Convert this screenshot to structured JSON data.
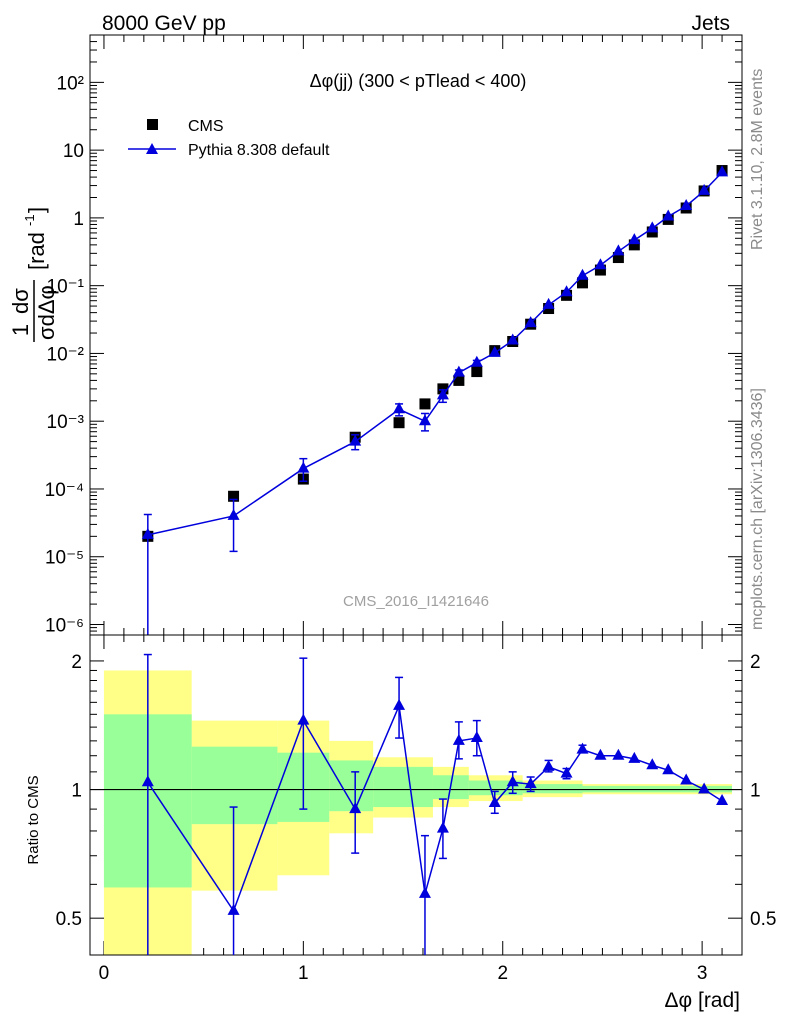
{
  "header": {
    "left": "8000 GeV pp",
    "right": "Jets",
    "plot_title": "Δφ(jj) (300 < pTlead <  400)",
    "analysis_id": "CMS_2016_I1421646",
    "side_rivet": "Rivet 3.1.10,  2.8M events",
    "side_mcplots": "mcplots.cern.ch [arXiv:1306.3436]"
  },
  "colors": {
    "cms": "#000000",
    "pythia": "#0000dd",
    "band_inner": "#99ff99",
    "band_outer": "#ffff88"
  },
  "chart_data": [
    {
      "type": "scatter",
      "name": "main",
      "ylabel": "1/σ dσ/dΔφ [rad⁻¹]",
      "yscale": "log",
      "xlim": [
        -0.07,
        3.2
      ],
      "ylim": [
        7e-07,
        500
      ],
      "y_tick_labels": [
        "10⁻⁶",
        "10⁻⁵",
        "10⁻⁴",
        "10⁻³",
        "10⁻²",
        "10⁻¹",
        "1",
        "10",
        "10²"
      ],
      "legend": {
        "position": "top-left",
        "entries": [
          "CMS",
          "Pythia 8.308 default"
        ]
      },
      "series": [
        {
          "name": "CMS",
          "marker": "square",
          "points": [
            {
              "x": 0.22,
              "y": 2e-05
            },
            {
              "x": 0.65,
              "y": 7.8e-05
            },
            {
              "x": 1.0,
              "y": 0.00014
            },
            {
              "x": 1.26,
              "y": 0.00058
            },
            {
              "x": 1.48,
              "y": 0.00095
            },
            {
              "x": 1.61,
              "y": 0.0018
            },
            {
              "x": 1.7,
              "y": 0.003
            },
            {
              "x": 1.78,
              "y": 0.004
            },
            {
              "x": 1.87,
              "y": 0.0054
            },
            {
              "x": 1.96,
              "y": 0.011
            },
            {
              "x": 2.05,
              "y": 0.015
            },
            {
              "x": 2.14,
              "y": 0.027
            },
            {
              "x": 2.23,
              "y": 0.046
            },
            {
              "x": 2.32,
              "y": 0.072
            },
            {
              "x": 2.4,
              "y": 0.11
            },
            {
              "x": 2.49,
              "y": 0.17
            },
            {
              "x": 2.58,
              "y": 0.26
            },
            {
              "x": 2.66,
              "y": 0.4
            },
            {
              "x": 2.75,
              "y": 0.62
            },
            {
              "x": 2.83,
              "y": 0.95
            },
            {
              "x": 2.92,
              "y": 1.4
            },
            {
              "x": 3.01,
              "y": 2.5
            },
            {
              "x": 3.1,
              "y": 5.0
            }
          ]
        },
        {
          "name": "Pythia 8.308 default",
          "marker": "triangle",
          "points": [
            {
              "x": 0.22,
              "y": 2.1e-05,
              "lo": 1e-07,
              "hi": 4.2e-05
            },
            {
              "x": 0.65,
              "y": 4e-05,
              "lo": 1.2e-05,
              "hi": 7e-05
            },
            {
              "x": 1.0,
              "y": 0.0002,
              "lo": 0.00013,
              "hi": 0.00028
            },
            {
              "x": 1.26,
              "y": 0.0005,
              "lo": 0.00038,
              "hi": 0.00063
            },
            {
              "x": 1.48,
              "y": 0.0015,
              "lo": 0.0012,
              "hi": 0.0018
            },
            {
              "x": 1.61,
              "y": 0.001,
              "lo": 0.00072,
              "hi": 0.0013
            },
            {
              "x": 1.7,
              "y": 0.0024,
              "lo": 0.0019,
              "hi": 0.0029
            },
            {
              "x": 1.78,
              "y": 0.0052,
              "lo": 0.0047,
              "hi": 0.0057
            },
            {
              "x": 1.87,
              "y": 0.0073,
              "lo": 0.0067,
              "hi": 0.0079
            },
            {
              "x": 1.96,
              "y": 0.0102
            },
            {
              "x": 2.05,
              "y": 0.0155
            },
            {
              "x": 2.14,
              "y": 0.028
            },
            {
              "x": 2.23,
              "y": 0.052
            },
            {
              "x": 2.32,
              "y": 0.08
            },
            {
              "x": 2.4,
              "y": 0.14
            },
            {
              "x": 2.49,
              "y": 0.2
            },
            {
              "x": 2.58,
              "y": 0.32
            },
            {
              "x": 2.66,
              "y": 0.47
            },
            {
              "x": 2.75,
              "y": 0.7
            },
            {
              "x": 2.83,
              "y": 1.05
            },
            {
              "x": 2.92,
              "y": 1.5
            },
            {
              "x": 3.01,
              "y": 2.5
            },
            {
              "x": 3.1,
              "y": 4.7
            }
          ]
        }
      ]
    },
    {
      "type": "line",
      "name": "ratio",
      "ylabel": "Ratio to CMS",
      "xlabel": "Δφ [rad]",
      "yscale": "log",
      "xlim": [
        -0.07,
        3.2
      ],
      "ylim": [
        0.41,
        2.3
      ],
      "x_ticks": [
        0,
        1,
        2,
        3
      ],
      "y_ticks": [
        0.5,
        1,
        2
      ],
      "bands": [
        {
          "x0": 0.0,
          "x1": 0.44,
          "inner": [
            0.59,
            1.5
          ],
          "outer": [
            0.41,
            1.9
          ]
        },
        {
          "x0": 0.44,
          "x1": 0.87,
          "inner": [
            0.83,
            1.26
          ],
          "outer": [
            0.58,
            1.45
          ]
        },
        {
          "x0": 0.87,
          "x1": 1.13,
          "inner": [
            0.84,
            1.22
          ],
          "outer": [
            0.63,
            1.45
          ]
        },
        {
          "x0": 1.13,
          "x1": 1.35,
          "inner": [
            0.89,
            1.17
          ],
          "outer": [
            0.79,
            1.3
          ]
        },
        {
          "x0": 1.35,
          "x1": 1.65,
          "inner": [
            0.91,
            1.13
          ],
          "outer": [
            0.86,
            1.19
          ]
        },
        {
          "x0": 1.65,
          "x1": 1.83,
          "inner": [
            0.95,
            1.08
          ],
          "outer": [
            0.91,
            1.13
          ]
        },
        {
          "x0": 1.83,
          "x1": 2.1,
          "inner": [
            0.97,
            1.05
          ],
          "outer": [
            0.94,
            1.08
          ]
        },
        {
          "x0": 2.1,
          "x1": 2.4,
          "inner": [
            0.98,
            1.03
          ],
          "outer": [
            0.96,
            1.05
          ]
        },
        {
          "x0": 2.4,
          "x1": 3.15,
          "inner": [
            0.985,
            1.02
          ],
          "outer": [
            0.975,
            1.03
          ]
        }
      ],
      "series": [
        {
          "name": "Pythia 8.308 default",
          "points": [
            {
              "x": 0.22,
              "y": 1.04,
              "lo": 0.41,
              "hi": 2.07
            },
            {
              "x": 0.65,
              "y": 0.52,
              "lo": 0.41,
              "hi": 0.91
            },
            {
              "x": 1.0,
              "y": 1.45,
              "lo": 0.9,
              "hi": 2.03
            },
            {
              "x": 1.26,
              "y": 0.9,
              "lo": 0.71,
              "hi": 1.1
            },
            {
              "x": 1.48,
              "y": 1.57,
              "lo": 1.32,
              "hi": 1.83
            },
            {
              "x": 1.61,
              "y": 0.57,
              "lo": 0.41,
              "hi": 0.78
            },
            {
              "x": 1.7,
              "y": 0.81,
              "lo": 0.69,
              "hi": 0.95
            },
            {
              "x": 1.78,
              "y": 1.3,
              "lo": 1.18,
              "hi": 1.44
            },
            {
              "x": 1.87,
              "y": 1.32,
              "lo": 1.2,
              "hi": 1.45
            },
            {
              "x": 1.96,
              "y": 0.93,
              "lo": 0.88,
              "hi": 0.99
            },
            {
              "x": 2.05,
              "y": 1.04,
              "lo": 0.98,
              "hi": 1.1
            },
            {
              "x": 2.14,
              "y": 1.03,
              "lo": 0.99,
              "hi": 1.07
            },
            {
              "x": 2.23,
              "y": 1.13,
              "lo": 1.1,
              "hi": 1.17
            },
            {
              "x": 2.32,
              "y": 1.09,
              "lo": 1.06,
              "hi": 1.12
            },
            {
              "x": 2.4,
              "y": 1.24,
              "lo": 1.22,
              "hi": 1.27
            },
            {
              "x": 2.49,
              "y": 1.2
            },
            {
              "x": 2.58,
              "y": 1.2
            },
            {
              "x": 2.66,
              "y": 1.18
            },
            {
              "x": 2.75,
              "y": 1.14
            },
            {
              "x": 2.83,
              "y": 1.11
            },
            {
              "x": 2.92,
              "y": 1.05
            },
            {
              "x": 3.01,
              "y": 1.0
            },
            {
              "x": 3.1,
              "y": 0.94
            }
          ]
        }
      ]
    }
  ]
}
